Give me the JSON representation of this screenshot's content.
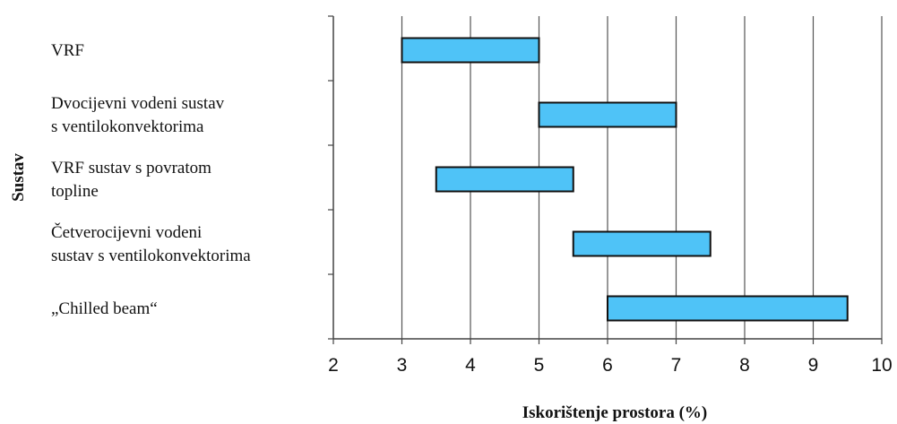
{
  "chart_data": {
    "type": "bar",
    "orientation": "horizontal-range",
    "xlabel": "Iskorištenje prostora (%)",
    "ylabel": "Sustav",
    "xlim": [
      2,
      10
    ],
    "xticks": [
      "2",
      "3",
      "4",
      "5",
      "6",
      "7",
      "8",
      "9",
      "10"
    ],
    "grid": "vertical",
    "bar_color": "#4FC3F7",
    "categories": [
      {
        "lines": [
          "VRF"
        ],
        "start": 3,
        "end": 5
      },
      {
        "lines": [
          "Dvocijevni vodeni sustav",
          "s ventilokonvektorima"
        ],
        "start": 5,
        "end": 7
      },
      {
        "lines": [
          "VRF sustav s povratom",
          "topline"
        ],
        "start": 3.5,
        "end": 5.5
      },
      {
        "lines": [
          "Četverocijevni vodeni",
          "sustav s ventilokonvektorima"
        ],
        "start": 5.5,
        "end": 7.5
      },
      {
        "lines": [
          "„Chilled beam“"
        ],
        "start": 6,
        "end": 9.5
      }
    ]
  }
}
